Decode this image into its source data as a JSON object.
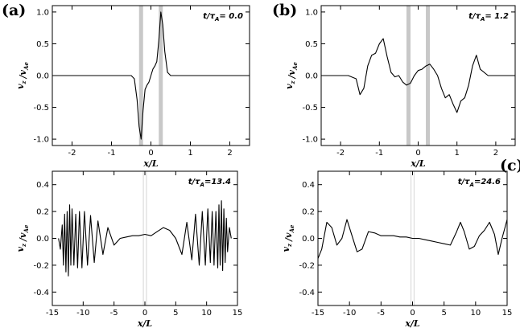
{
  "panels_text": {
    "a_label": "(a)",
    "b_label": "(b)",
    "c_label": "(c)"
  },
  "chart_data": [
    {
      "id": "a",
      "type": "line",
      "panel_label": "(a)",
      "time_label": "t/τ_A= 0.0",
      "xlabel": "x/L",
      "ylabel": "v_z /v_Ae",
      "xlim": [
        -2.5,
        2.5
      ],
      "ylim": [
        -1.1,
        1.1
      ],
      "xticks": [
        -2,
        -1,
        0,
        1,
        2
      ],
      "yticks": [
        -1.0,
        -0.5,
        0.0,
        0.5,
        1.0
      ],
      "shaded_x": [
        -0.25,
        0.25
      ],
      "x": [
        -2.5,
        -1.0,
        -0.5,
        -0.42,
        -0.35,
        -0.3,
        -0.25,
        -0.2,
        -0.15,
        -0.1,
        -0.05,
        0.0,
        0.05,
        0.1,
        0.15,
        0.2,
        0.25,
        0.3,
        0.35,
        0.42,
        0.5,
        1.0,
        2.5
      ],
      "values": [
        0.0,
        0.0,
        0.0,
        -0.05,
        -0.38,
        -0.8,
        -1.0,
        -0.55,
        -0.22,
        -0.15,
        -0.1,
        0.0,
        0.1,
        0.15,
        0.22,
        0.55,
        1.0,
        0.8,
        0.38,
        0.05,
        0.0,
        0.0,
        0.0
      ],
      "series": [
        {
          "name": "",
          "color": "#000000"
        }
      ]
    },
    {
      "id": "b",
      "type": "line",
      "panel_label": "(b)",
      "time_label": "t/τ_A= 1.2",
      "xlabel": "x/L",
      "ylabel": "v_z /v_Ae",
      "xlim": [
        -2.5,
        2.5
      ],
      "ylim": [
        -1.1,
        1.1
      ],
      "xticks": [
        -2,
        -1,
        0,
        1,
        2
      ],
      "yticks": [
        -1.0,
        -0.5,
        0.0,
        0.5,
        1.0
      ],
      "shaded_x": [
        -0.25,
        0.25
      ],
      "x": [
        -2.5,
        -1.8,
        -1.6,
        -1.5,
        -1.4,
        -1.3,
        -1.2,
        -1.1,
        -1.0,
        -0.9,
        -0.8,
        -0.7,
        -0.6,
        -0.5,
        -0.4,
        -0.3,
        -0.2,
        -0.1,
        0.0,
        0.1,
        0.2,
        0.3,
        0.4,
        0.5,
        0.6,
        0.7,
        0.8,
        0.9,
        1.0,
        1.1,
        1.2,
        1.3,
        1.4,
        1.5,
        1.6,
        1.8,
        2.5
      ],
      "values": [
        0.0,
        0.0,
        -0.05,
        -0.3,
        -0.2,
        0.15,
        0.32,
        0.35,
        0.5,
        0.58,
        0.3,
        0.05,
        -0.02,
        0.0,
        -0.1,
        -0.15,
        -0.12,
        0.0,
        0.08,
        0.1,
        0.15,
        0.18,
        0.1,
        0.0,
        -0.2,
        -0.35,
        -0.3,
        -0.45,
        -0.58,
        -0.4,
        -0.35,
        -0.15,
        0.15,
        0.32,
        0.1,
        0.0,
        0.0
      ],
      "series": [
        {
          "name": "",
          "color": "#000000"
        }
      ]
    },
    {
      "id": "c-left",
      "type": "line",
      "panel_label": "",
      "time_label": "t/τ_A=13.4",
      "xlabel": "x/L",
      "ylabel": "v_z /v_Ae",
      "xlim": [
        -15,
        15
      ],
      "ylim": [
        -0.5,
        0.5
      ],
      "xticks": [
        -15,
        -10,
        -5,
        0,
        5,
        10,
        15
      ],
      "yticks": [
        -0.4,
        -0.2,
        0.0,
        0.2,
        0.4
      ],
      "shaded_x": [
        -0.25,
        0.25
      ],
      "x": [
        -14.0,
        -13.7,
        -13.4,
        -13.2,
        -13.0,
        -12.8,
        -12.6,
        -12.4,
        -12.2,
        -12.0,
        -11.8,
        -11.5,
        -11.2,
        -10.9,
        -10.6,
        -10.2,
        -9.8,
        -9.3,
        -8.8,
        -8.2,
        -7.6,
        -6.8,
        -6.0,
        -5.0,
        -4.0,
        -3.0,
        -2.0,
        -1.0,
        0.0,
        1.0,
        2.0,
        3.0,
        4.0,
        5.0,
        6.0,
        6.8,
        7.6,
        8.2,
        8.8,
        9.3,
        9.8,
        10.2,
        10.6,
        10.9,
        11.2,
        11.5,
        11.8,
        12.0,
        12.2,
        12.4,
        12.6,
        12.8,
        13.0,
        13.2,
        13.4,
        13.7,
        14.0
      ],
      "values": [
        0.0,
        -0.08,
        0.1,
        -0.2,
        0.18,
        -0.25,
        0.2,
        -0.28,
        0.25,
        -0.2,
        0.22,
        -0.2,
        0.18,
        -0.22,
        0.2,
        -0.22,
        0.2,
        -0.2,
        0.17,
        -0.18,
        0.13,
        -0.12,
        0.08,
        -0.05,
        0.0,
        0.01,
        0.02,
        0.02,
        0.03,
        0.02,
        0.05,
        0.08,
        0.06,
        0.0,
        -0.12,
        0.12,
        -0.16,
        0.18,
        -0.2,
        0.2,
        -0.2,
        0.22,
        -0.18,
        0.2,
        -0.2,
        0.2,
        -0.22,
        0.25,
        -0.2,
        0.28,
        -0.24,
        0.22,
        -0.18,
        0.15,
        -0.1,
        0.08,
        0.0
      ],
      "series": [
        {
          "name": "",
          "color": "#000000"
        }
      ]
    },
    {
      "id": "c-right",
      "type": "line",
      "panel_label": "(c)",
      "time_label": "t/τ_A=24.6",
      "xlabel": "x/L",
      "ylabel": "v_z /v_Ae",
      "xlim": [
        -15,
        15
      ],
      "ylim": [
        -0.5,
        0.5
      ],
      "xticks": [
        -15,
        -10,
        -5,
        0,
        5,
        10,
        15
      ],
      "yticks": [
        -0.4,
        -0.2,
        0.0,
        0.2,
        0.4
      ],
      "shaded_x": [
        -0.25,
        0.25
      ],
      "x": [
        -15.0,
        -14.4,
        -13.6,
        -12.8,
        -12.0,
        -11.2,
        -10.4,
        -9.6,
        -8.8,
        -8.0,
        -7.0,
        -6.0,
        -5.0,
        -4.0,
        -3.0,
        -2.0,
        -1.0,
        0.0,
        1.0,
        2.0,
        3.0,
        4.0,
        5.0,
        6.0,
        7.0,
        7.6,
        8.2,
        9.0,
        9.8,
        10.6,
        11.4,
        12.2,
        13.0,
        13.6,
        14.2,
        15.0
      ],
      "values": [
        -0.15,
        -0.08,
        0.12,
        0.08,
        -0.05,
        0.0,
        0.14,
        0.02,
        -0.1,
        -0.08,
        0.05,
        0.04,
        0.02,
        0.02,
        0.02,
        0.01,
        0.01,
        0.0,
        0.0,
        -0.01,
        -0.02,
        -0.03,
        -0.04,
        -0.05,
        0.05,
        0.12,
        0.05,
        -0.08,
        -0.06,
        0.02,
        0.06,
        0.12,
        0.03,
        -0.12,
        0.0,
        0.14
      ],
      "series": [
        {
          "name": "",
          "color": "#000000"
        }
      ]
    }
  ]
}
